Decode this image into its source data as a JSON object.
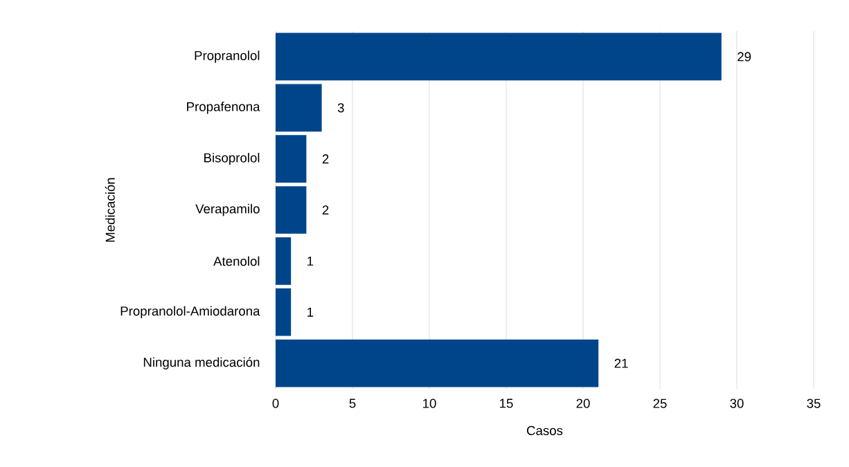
{
  "chart_data": {
    "type": "bar",
    "orientation": "horizontal",
    "xlabel": "Casos",
    "ylabel": "Medicación",
    "categories": [
      "Propranolol",
      "Propafenona",
      "Bisoprolol",
      "Verapamilo",
      "Atenolol",
      "Propranolol-Amiodarona",
      "Ninguna medicación"
    ],
    "values": [
      29,
      3,
      2,
      2,
      1,
      1,
      21
    ],
    "color": "#00458a",
    "xlim": [
      0,
      35
    ],
    "xticks": [
      0,
      5,
      10,
      15,
      20,
      25,
      30,
      35
    ],
    "grid": "x",
    "data_labels": true
  }
}
